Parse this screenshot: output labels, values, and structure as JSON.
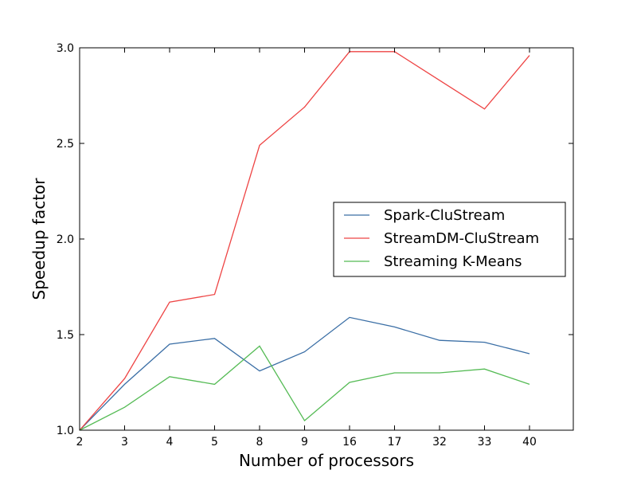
{
  "chart_data": {
    "type": "line",
    "title": "",
    "xlabel": "Number of processors",
    "ylabel": "Speedup factor",
    "categories": [
      "2",
      "3",
      "4",
      "5",
      "8",
      "9",
      "16",
      "17",
      "32",
      "33",
      "40"
    ],
    "ylim": [
      1.0,
      3.0
    ],
    "yticks": [
      "1.0",
      "1.5",
      "2.0",
      "2.5",
      "3.0"
    ],
    "grid": false,
    "legend_position": "center-right",
    "series": [
      {
        "name": "Spark-CluStream",
        "color": "#3a6ea5",
        "values": [
          1.0,
          1.24,
          1.45,
          1.48,
          1.31,
          1.41,
          1.59,
          1.54,
          1.47,
          1.46,
          1.4
        ]
      },
      {
        "name": "StreamDM-CluStream",
        "color": "#ee4444",
        "values": [
          1.0,
          1.27,
          1.67,
          1.71,
          2.49,
          2.69,
          2.98,
          2.98,
          2.83,
          2.68,
          2.96
        ]
      },
      {
        "name": "Streaming K-Means",
        "color": "#55bb55",
        "values": [
          1.0,
          1.12,
          1.28,
          1.24,
          1.44,
          1.05,
          1.25,
          1.3,
          1.3,
          1.32,
          1.24
        ]
      }
    ]
  }
}
